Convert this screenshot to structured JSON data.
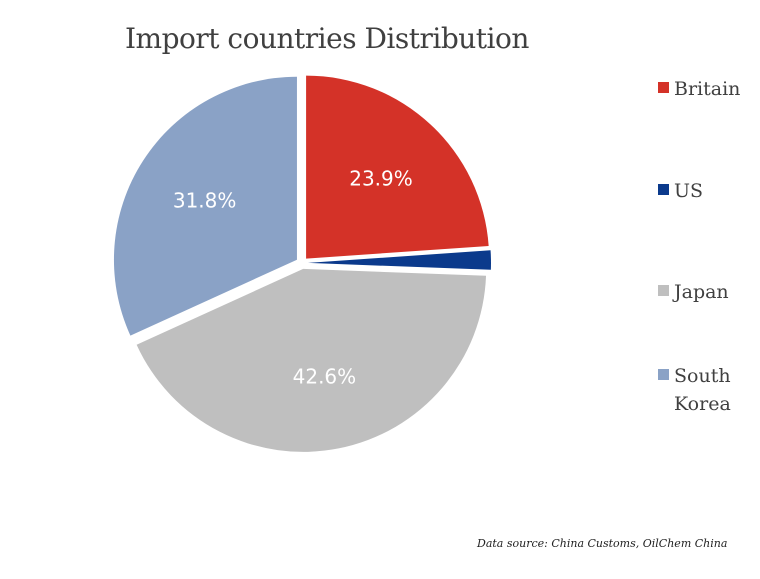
{
  "chart_data": {
    "type": "pie",
    "title": "Import countries Distribution",
    "slices": [
      {
        "label": "Britain",
        "value": 23.9,
        "value_label": "23.9%",
        "color": "#d43228"
      },
      {
        "label": "US",
        "value": 1.7,
        "value_label": "",
        "color": "#0b3a8c"
      },
      {
        "label": "Japan",
        "value": 42.6,
        "value_label": "42.6%",
        "color": "#bfbfbf"
      },
      {
        "label": "South Korea",
        "value": 31.8,
        "value_label": "31.8%",
        "color": "#8aa2c6"
      }
    ],
    "legend_position": "right"
  },
  "source": "Data source: China Customs, OilChem China"
}
